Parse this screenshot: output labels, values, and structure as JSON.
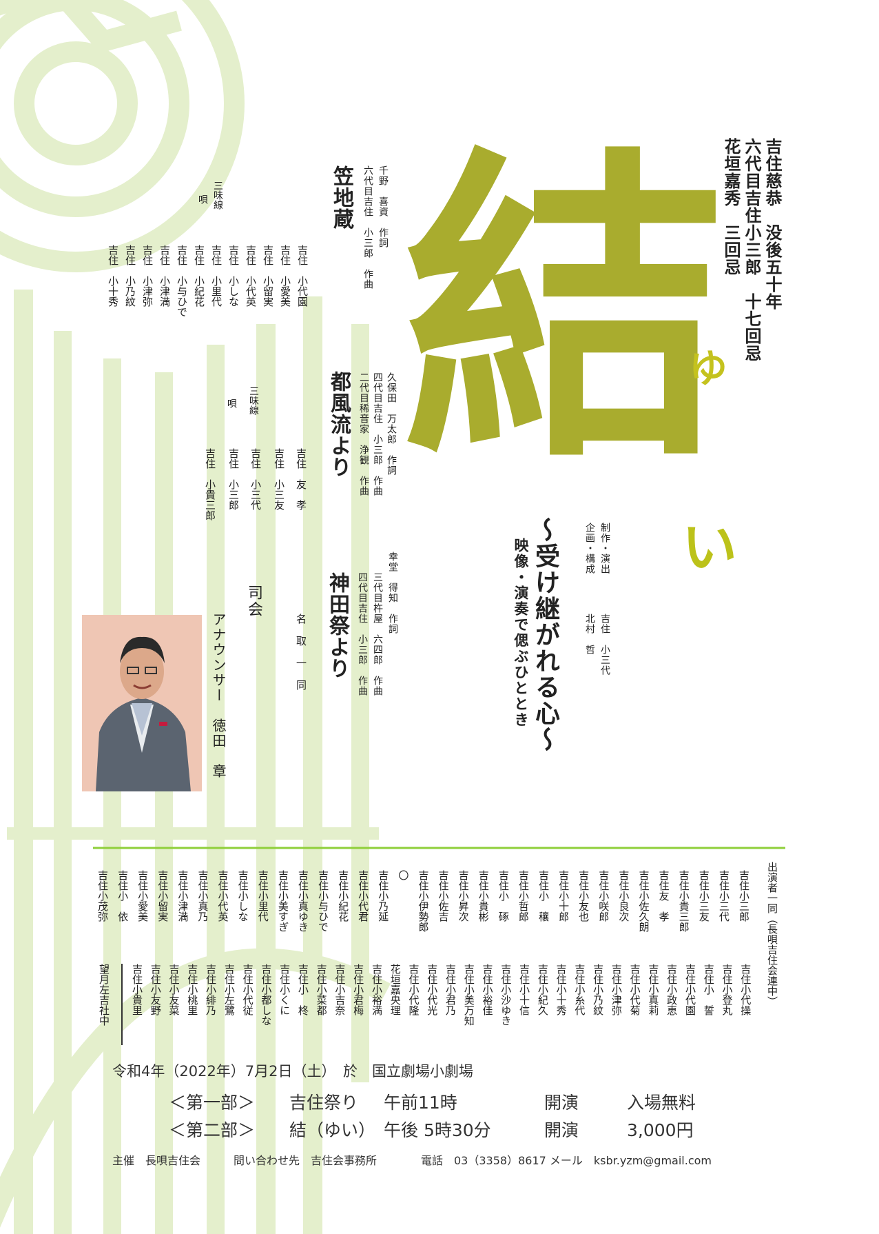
{
  "colors": {
    "olive": "#a9ac2e",
    "pale_green": "#e4efcc",
    "rule_green": "#8fcf3a",
    "text": "#222222"
  },
  "memorial": [
    "吉住慈恭　没後五十年",
    "六代目吉住小三郎　十七回忌",
    "花垣嘉秀　三回忌"
  ],
  "logo": {
    "kanji": "結",
    "ruby": "ゆ",
    "tail": "い"
  },
  "subtitle": "～受け継がれる心～",
  "tagline": "映像・演奏で偲ぶひととき",
  "production": {
    "role1": "制作・演出",
    "role2": "企画・構成",
    "name1": "吉住　小三代",
    "name2": "北村　哲"
  },
  "pieces": [
    {
      "title": "笠地蔵",
      "credits": [
        "千野　喜資　作詞",
        "六代目吉住　小三郎　作曲"
      ],
      "shamisen_label": "三味線",
      "uta_label": "唄",
      "performers": [
        "吉住　小代園",
        "吉住　小愛美",
        "吉住　小留実",
        "吉住　小代英",
        "吉住　小しな",
        "吉住　小里代",
        "吉住　小紀花",
        "吉住　小与ひで",
        "吉住　小津満",
        "吉住　小津弥",
        "吉住　小乃紋",
        "吉住　小十秀"
      ]
    },
    {
      "title": "都風流より",
      "credits": [
        "久保田　万太郎　作詞",
        "四代目吉住　小三郎　作曲",
        "二代目稀音家　浄観　作曲"
      ],
      "shamisen_label": "三味線",
      "uta_label": "唄",
      "performers": [
        "吉住　友　孝",
        "吉住　小三友",
        "吉住　小三代",
        "吉住　小三郎",
        "吉住　小貴三郎"
      ]
    },
    {
      "title": "神田祭より",
      "credits": [
        "幸堂　得知　作詞",
        "三代目杵屋　六四郎　作曲",
        "四代目吉住　小三郎　作曲"
      ]
    }
  ],
  "natori": "名　取　一　同",
  "mc_label": "司会",
  "announcer": "アナウンサー　徳田　章",
  "cast_title": "出演者一同（長唄吉住会連中）",
  "cast_top": [
    "吉住小三郎",
    "吉住小三代",
    "吉住小三友",
    "吉住小貴三郎",
    "吉住友　孝",
    "吉住小佐久朗",
    "吉住小良次",
    "吉住小咲郎",
    "吉住小友也",
    "吉住小十郎",
    "吉住小　穰",
    "吉住小哲郎",
    "吉住小　硺",
    "吉住小貴彬",
    "吉住小昇次",
    "吉住小佐吉",
    "吉住小伊勢郎",
    "〇",
    "吉住小乃延",
    "吉住小代君",
    "吉住小紀花",
    "吉住小与ひで",
    "吉住小真ゆき",
    "吉住小美すぎ",
    "吉住小里代",
    "吉住小しな",
    "吉住小代英",
    "吉住小真乃",
    "吉住小津満",
    "吉住小留実",
    "吉住小愛美",
    "吉住小　依",
    "吉住小茂弥"
  ],
  "cast_bottom": [
    "吉住小代操",
    "吉住小登丸",
    "吉住小　誓",
    "吉住小代園",
    "吉住小政恵",
    "吉住小真莉",
    "吉住小代菊",
    "吉住小津弥",
    "吉住小乃紋",
    "吉住小糸代",
    "吉住小十秀",
    "吉住小紀久",
    "吉住小十信",
    "吉住小沙ゆき",
    "吉住小裕佳",
    "吉住小美万知",
    "吉住小君乃",
    "吉住小代光",
    "吉住小代隆",
    "花垣嘉央理",
    "吉住小裕満",
    "吉住小君梅",
    "吉住小吉奈",
    "吉住小菜都",
    "吉住小　柊",
    "吉住小くに",
    "吉住小都しな",
    "吉住小代従",
    "吉住小左鷺",
    "吉住小緋乃",
    "吉住小桃里",
    "吉住小友菜",
    "吉住小友野",
    "吉住小貴里"
  ],
  "hayashi": "望月左吉社中",
  "event": {
    "date_line": "令和4年（2022年）7月2日（土）　於　国立劇場小劇場",
    "part1": {
      "label": "＜第一部＞",
      "title": "吉住祭り",
      "time": "午前11時",
      "start": "開演",
      "price": "入場無料"
    },
    "part2": {
      "label": "＜第二部＞",
      "title": "結（ゆい）",
      "time": "午後 5時30分",
      "start": "開演",
      "price": "3,000円"
    },
    "footer": "主催　長唄吉住会　　　問い合わせ先　吉住会事務所　　　　電話　03（3358）8617 メール　ksbr.yzm@gmail.com"
  }
}
